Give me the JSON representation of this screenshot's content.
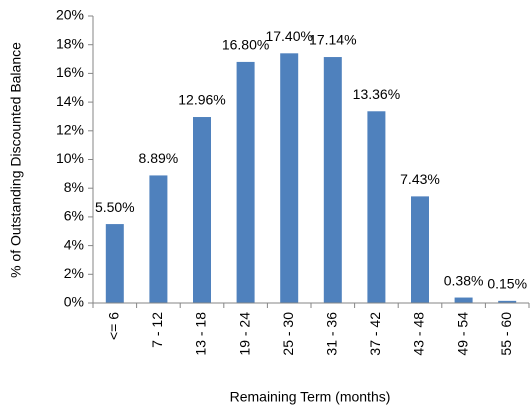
{
  "chart_data": {
    "type": "bar",
    "x_label": "Remaining Term (months)",
    "y_label": "% of Outstanding Discounted Balance",
    "categories": [
      "<= 6",
      "7 - 12",
      "13 - 18",
      "19 - 24",
      "25 - 30",
      "31 - 36",
      "37 - 42",
      "43 - 48",
      "49 - 54",
      "55 - 60"
    ],
    "values": [
      5.5,
      8.89,
      12.96,
      16.8,
      17.4,
      17.14,
      13.36,
      7.43,
      0.38,
      0.15
    ],
    "value_labels": [
      "5.50%",
      "8.89%",
      "12.96%",
      "16.80%",
      "17.40%",
      "17.14%",
      "13.36%",
      "7.43%",
      "0.38%",
      "0.15%"
    ],
    "color": "#4f81bd",
    "ylim": [
      0,
      20
    ],
    "yticks": [
      {
        "value": 0,
        "label": "0%"
      },
      {
        "value": 2,
        "label": "2%"
      },
      {
        "value": 4,
        "label": "4%"
      },
      {
        "value": 6,
        "label": "6%"
      },
      {
        "value": 8,
        "label": "8%"
      },
      {
        "value": 10,
        "label": "10%"
      },
      {
        "value": 12,
        "label": "12%"
      },
      {
        "value": 14,
        "label": "14%"
      },
      {
        "value": 16,
        "label": "16%"
      },
      {
        "value": 18,
        "label": "18%"
      },
      {
        "value": 20,
        "label": "20%"
      }
    ],
    "grid": false
  }
}
